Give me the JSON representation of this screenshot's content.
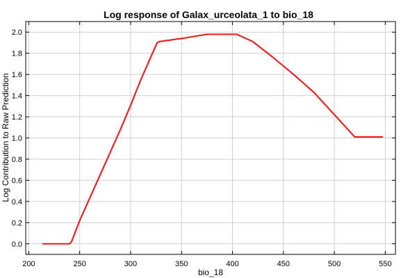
{
  "chart_data": {
    "type": "line",
    "title": "Log response of Galax_urceolata_1 to bio_18",
    "xlabel": "bio_18",
    "ylabel": "Log Contribution to Raw Prediction",
    "xlim": [
      197,
      560
    ],
    "ylim": [
      -0.1,
      2.1
    ],
    "xticks": [
      200,
      250,
      300,
      350,
      400,
      450,
      500,
      550
    ],
    "yticks": [
      0.0,
      0.2,
      0.4,
      0.6,
      0.8,
      1.0,
      1.2,
      1.4,
      1.6,
      1.8,
      2.0
    ],
    "xtick_labels": [
      "200",
      "250",
      "300",
      "350",
      "400",
      "450",
      "500",
      "550"
    ],
    "ytick_labels": [
      "0.0",
      "0.2",
      "0.4",
      "0.6",
      "0.8",
      "1.0",
      "1.2",
      "1.4",
      "1.6",
      "1.8",
      "2.0"
    ],
    "grid": true,
    "series": [
      {
        "color": "#ee2222",
        "x": [
          214,
          240,
          242,
          250,
          270,
          290,
          300,
          310,
          320,
          326,
          328,
          350,
          375,
          404,
          420,
          440,
          460,
          480,
          500,
          520,
          547
        ],
        "y": [
          0.0,
          0.0,
          0.02,
          0.22,
          0.65,
          1.08,
          1.31,
          1.55,
          1.77,
          1.9,
          1.91,
          1.94,
          1.98,
          1.98,
          1.91,
          1.76,
          1.6,
          1.43,
          1.22,
          1.01,
          1.01
        ]
      }
    ]
  }
}
